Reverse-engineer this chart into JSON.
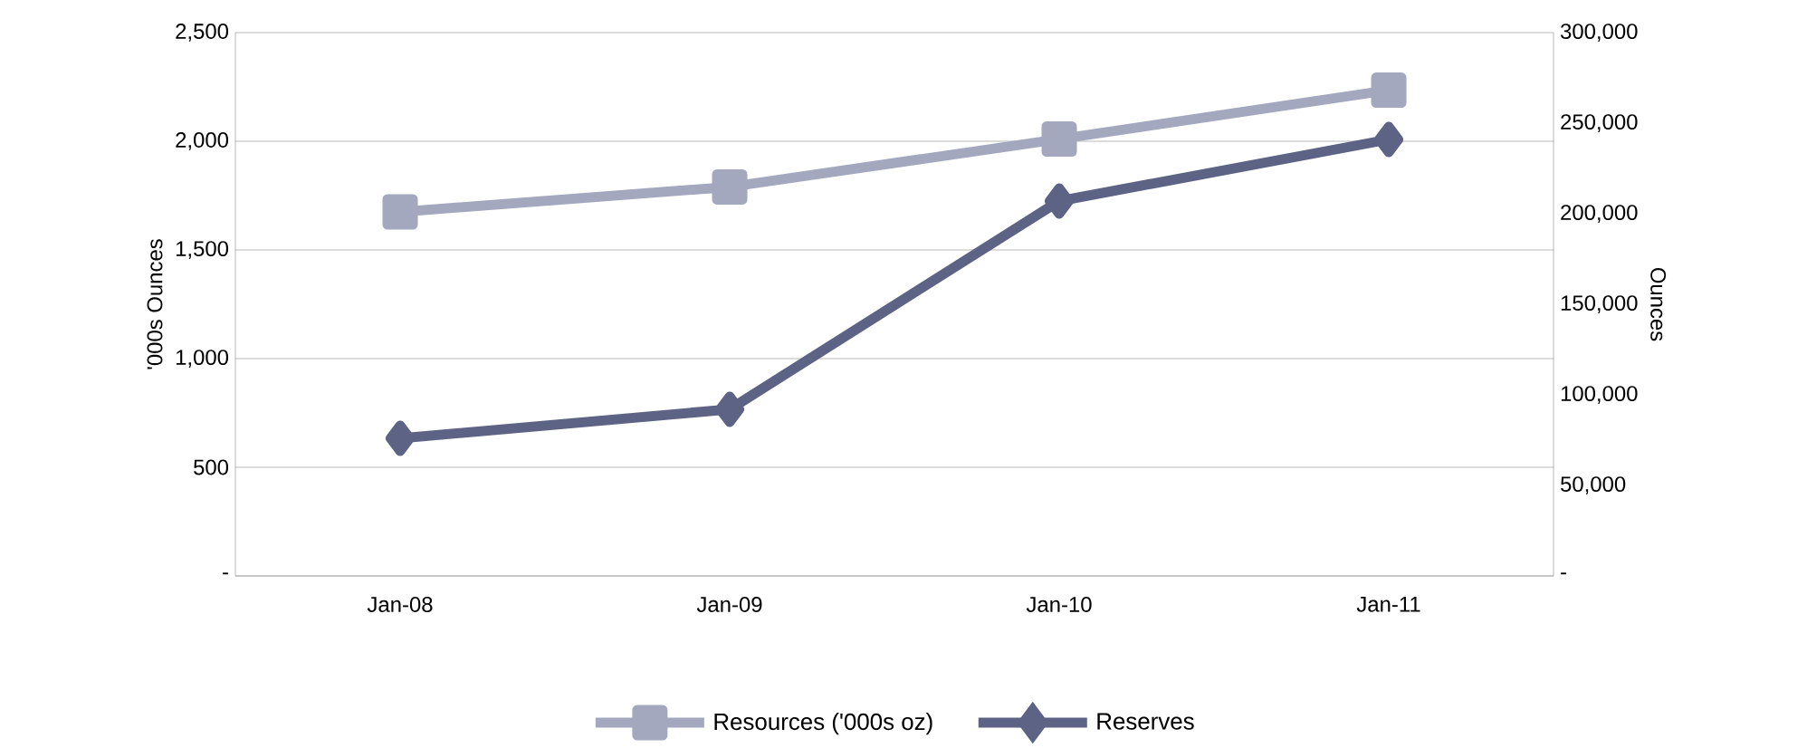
{
  "chart_data": {
    "type": "line",
    "categories": [
      "Jan-08",
      "Jan-09",
      "Jan-10",
      "Jan-11"
    ],
    "series": [
      {
        "name": "Resources ('000s oz)",
        "color": "#a3a8bf",
        "marker": "square",
        "values": [
          1675,
          1790,
          2010,
          2235
        ]
      },
      {
        "name": "Reserves",
        "color": "#5c6385",
        "marker": "diamond",
        "axis": "y2",
        "values": [
          76000,
          92000,
          207000,
          241000
        ]
      }
    ],
    "ylabel": "'000s Ounces",
    "y2label": "Ounces",
    "ylim": [
      0,
      2500
    ],
    "yticks": [
      {
        "value": 0,
        "label": "-"
      },
      {
        "value": 500,
        "label": "500"
      },
      {
        "value": 1000,
        "label": "1,000"
      },
      {
        "value": 1500,
        "label": "1,500"
      },
      {
        "value": 2000,
        "label": "2,000"
      },
      {
        "value": 2500,
        "label": "2,500"
      }
    ],
    "y2lim": [
      0,
      300000
    ],
    "y2ticks": [
      {
        "value": 0,
        "label": "-"
      },
      {
        "value": 50000,
        "label": "50,000"
      },
      {
        "value": 100000,
        "label": "100,000"
      },
      {
        "value": 150000,
        "label": "150,000"
      },
      {
        "value": 200000,
        "label": "200,000"
      },
      {
        "value": 250000,
        "label": "250,000"
      },
      {
        "value": 300000,
        "label": "300,000"
      }
    ],
    "grid": "y",
    "legend": "bottom",
    "line_style": "solid"
  }
}
